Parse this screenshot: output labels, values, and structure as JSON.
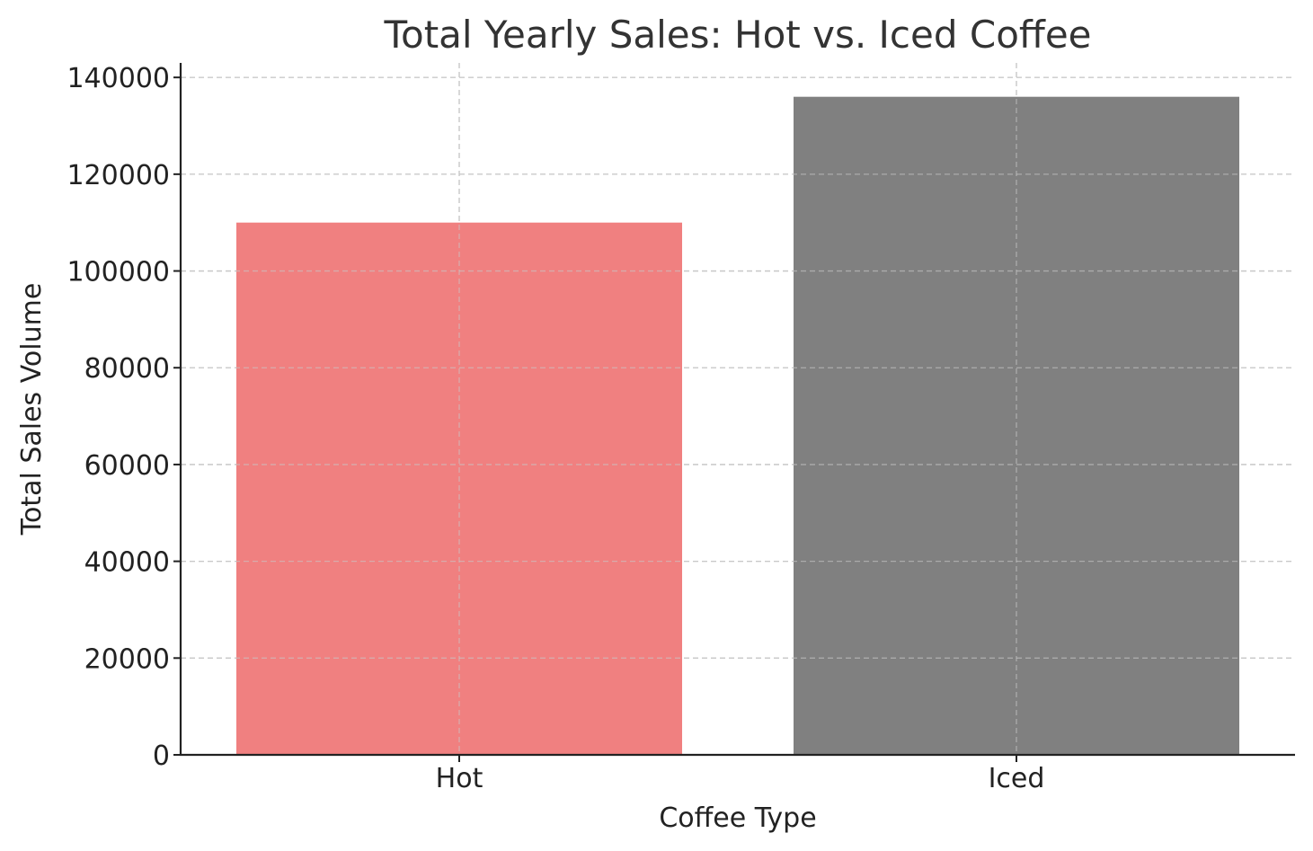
{
  "chart_data": {
    "type": "bar",
    "title": "Total Yearly Sales: Hot vs. Iced Coffee",
    "xlabel": "Coffee Type",
    "ylabel": "Total Sales Volume",
    "categories": [
      "Hot",
      "Iced"
    ],
    "values": [
      110000,
      136000
    ],
    "colors": [
      "#f08080",
      "#808080"
    ],
    "ylim": [
      0,
      143000
    ],
    "yticks": [
      0,
      20000,
      40000,
      60000,
      80000,
      100000,
      120000,
      140000
    ],
    "grid": true,
    "legend": "none"
  }
}
